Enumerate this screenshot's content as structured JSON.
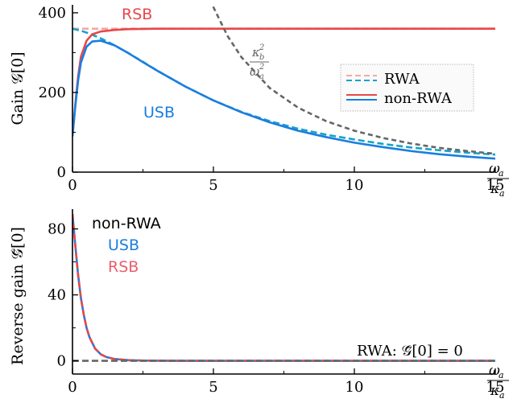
{
  "chart_data": [
    {
      "type": "line",
      "panel": "top",
      "ylabel": "Gain 𝒢[0]",
      "xlabel_num": "ω",
      "xlabel_num_sub": "a",
      "xlabel_den": "κ",
      "xlabel_den_sub": "a",
      "xlim": [
        0,
        15
      ],
      "ylim": [
        0,
        420
      ],
      "xticks": [
        0,
        5,
        10,
        15
      ],
      "yticks": [
        0,
        200,
        400
      ],
      "annotations": {
        "rsb": "RSB",
        "usb": "USB",
        "asym_num": "κ",
        "asym_num_sub": "b",
        "asym_num_sup": "2",
        "asym_den": "ω",
        "asym_den_sub": "a",
        "asym_den_sup": "2"
      },
      "legend": {
        "position": "right",
        "entries": [
          "RWA",
          "non-RWA"
        ]
      },
      "series": [
        {
          "name": "RWA RSB",
          "color": "#f4a9a3",
          "dash": "dashed",
          "x": [
            0,
            15
          ],
          "y": [
            360,
            360
          ]
        },
        {
          "name": "RWA USB",
          "color": "#17a2c9",
          "dash": "dashed",
          "x": [
            0,
            0.3,
            0.6,
            1,
            1.5,
            2,
            2.5,
            3,
            4,
            5,
            6,
            7,
            8,
            9,
            10,
            11,
            12,
            13,
            14,
            15
          ],
          "y": [
            360,
            355,
            348,
            336,
            318,
            298,
            277,
            255,
            215,
            180,
            151,
            128,
            109,
            94,
            82,
            71,
            62,
            55,
            49,
            44
          ]
        },
        {
          "name": "non-RWA RSB",
          "color": "#e8474a",
          "dash": "solid",
          "x": [
            0,
            0.1,
            0.2,
            0.3,
            0.5,
            0.7,
            1,
            1.5,
            2,
            3,
            5,
            10,
            15
          ],
          "y": [
            90,
            170,
            240,
            290,
            330,
            346,
            353,
            357,
            359,
            360,
            360,
            360,
            360
          ]
        },
        {
          "name": "non-RWA USB",
          "color": "#1a7ee0",
          "dash": "solid",
          "x": [
            0,
            0.1,
            0.2,
            0.3,
            0.5,
            0.7,
            1,
            1.5,
            2,
            2.5,
            3,
            4,
            5,
            6,
            7,
            8,
            9,
            10,
            11,
            12,
            13,
            14,
            15
          ],
          "y": [
            90,
            165,
            230,
            275,
            315,
            328,
            330,
            318,
            298,
            276,
            255,
            215,
            180,
            150,
            125,
            104,
            88,
            74,
            63,
            53,
            45,
            39,
            34
          ]
        },
        {
          "name": "κb²/ωa²",
          "color": "#666666",
          "dash": "dotted",
          "x": [
            4.7,
            5,
            5.5,
            6,
            7,
            8,
            9,
            10,
            11,
            12,
            13,
            14,
            15
          ],
          "y": [
            450,
            414,
            342,
            288,
            211,
            162,
            128,
            104,
            86,
            72,
            61,
            53,
            46
          ]
        }
      ]
    },
    {
      "type": "line",
      "panel": "bottom",
      "ylabel": "Reverse gain 𝒢̄[0]",
      "xlabel_num": "ω",
      "xlabel_num_sub": "a",
      "xlabel_den": "κ",
      "xlabel_den_sub": "a",
      "xlim": [
        0,
        15
      ],
      "ylim": [
        -8,
        92
      ],
      "xticks": [
        0,
        5,
        10,
        15
      ],
      "yticks": [
        0,
        40,
        80
      ],
      "annotations": {
        "nonrwa": "non-RWA",
        "usb": "USB",
        "rsb": "RSB",
        "rwa_note": "RWA: 𝒢̄[0] = 0"
      },
      "series": [
        {
          "name": "non-RWA",
          "color": "#1a7ee0",
          "dash": "solid",
          "x": [
            0,
            0.1,
            0.2,
            0.3,
            0.4,
            0.5,
            0.6,
            0.8,
            1,
            1.2,
            1.5,
            2,
            2.5,
            3,
            4,
            5,
            7,
            10,
            15
          ],
          "y": [
            89,
            70,
            52,
            38,
            28,
            20,
            14.5,
            7.5,
            4,
            2.3,
            1.1,
            0.4,
            0.15,
            0.07,
            0.02,
            0.01,
            0,
            0,
            0
          ]
        },
        {
          "name": "non-RWA RSB",
          "color": "#e8474a",
          "dash": "dashed",
          "x": [
            0,
            0.1,
            0.2,
            0.3,
            0.4,
            0.5,
            0.6,
            0.8,
            1,
            1.2,
            1.5,
            2,
            2.5,
            3,
            4,
            5,
            7,
            10,
            15
          ],
          "y": [
            89,
            70,
            52,
            38,
            28,
            20,
            14.5,
            7.5,
            4,
            2.3,
            1.1,
            0.4,
            0.15,
            0.07,
            0.02,
            0.01,
            0,
            0,
            0
          ]
        },
        {
          "name": "RWA",
          "color": "#666666",
          "dash": "dashed",
          "x": [
            0,
            15
          ],
          "y": [
            0,
            0
          ]
        }
      ]
    }
  ],
  "colors": {
    "rwa_rsb": "#f4a9a3",
    "rwa_usb": "#17a2c9",
    "nonrwa_rsb": "#e8474a",
    "nonrwa_usb": "#1a7ee0",
    "asymptote": "#666666",
    "label_nonrwa": "#000000",
    "label_usb": "#1a7ee0",
    "label_rsb": "#e8606a"
  }
}
